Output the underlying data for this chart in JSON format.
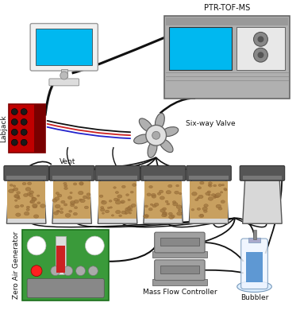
{
  "background_color": "#ffffff",
  "labels": {
    "ptr_tof_ms": "PTR-TOF-MS",
    "six_way_valve": "Six-way Valve",
    "labjack": "Labjack",
    "vent": "Vent",
    "zero_air_generator": "Zero Air Generator",
    "mass_flow_controller": "Mass Flow Controller",
    "bubbler": "Bubbler"
  },
  "colors": {
    "monitor_screen": "#00b8f0",
    "ptr_screen": "#00b8f0",
    "ptr_bg": "#b0b0b0",
    "ptr_panel": "#c8c8c8",
    "ptr_white_panel": "#e8e8e8",
    "labjack_body": "#c00000",
    "labjack_dark": "#7a0000",
    "valve_petals": "#b0b0b0",
    "valve_center": "#e0e0e0",
    "jar_lid": "#555555",
    "jar_glass": "#d8d8d8",
    "soil_color": "#c8a060",
    "soil_dot": "#a07840",
    "zero_air_bg": "#3a9a3a",
    "mfc_body": "#a0a0a0",
    "mfc_dark": "#888888",
    "bubbler_water": "#4488cc",
    "bubbler_glass": "#ddeeff",
    "wire_black": "#111111",
    "wire_red": "#cc2222",
    "wire_blue": "#2222cc",
    "text_color": "#111111"
  },
  "figsize": [
    3.78,
    4.0
  ],
  "dpi": 100
}
